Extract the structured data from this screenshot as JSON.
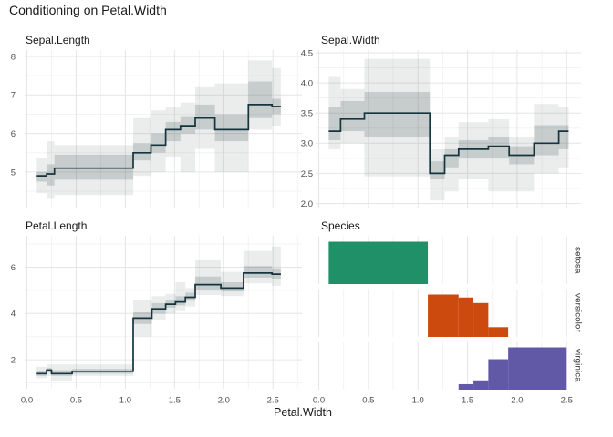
{
  "title": "Conditioning on Petal.Width",
  "x_axis": {
    "label": "Petal.Width",
    "ticks": [
      {
        "v": 0.0,
        "label": "0.0"
      },
      {
        "v": 0.5,
        "label": "0.5"
      },
      {
        "v": 1.0,
        "label": "1.0"
      },
      {
        "v": 1.5,
        "label": "1.5"
      },
      {
        "v": 2.0,
        "label": "2.0"
      },
      {
        "v": 2.5,
        "label": "2.5"
      }
    ],
    "minor_values": [
      0.25,
      0.75,
      1.25,
      1.75,
      2.25,
      2.75
    ],
    "range": [
      0.0,
      2.5
    ]
  },
  "colors": {
    "step_line": "#16343e",
    "band": "#4a5d58",
    "grid_major": "#e4e6e6",
    "grid_minor": "#f2f3f3",
    "title_text": "#191919",
    "tick_text": "#4d4d4d",
    "setosa": "#1f9067",
    "versicolor": "#cc4a0e",
    "virginica": "#6159a6"
  },
  "segment_format": "[x_start, x_end, median, outer_low, inner_low, inner_high, outer_high]",
  "chart_data": [
    {
      "type": "step-band",
      "title": "Sepal.Length",
      "position": "top-left",
      "y_ticks": [
        {
          "v": 5,
          "label": "5"
        },
        {
          "v": 6,
          "label": "6"
        },
        {
          "v": 7,
          "label": "7"
        },
        {
          "v": 8,
          "label": "8"
        }
      ],
      "segments": [
        [
          0.1,
          0.2,
          4.9,
          4.45,
          4.75,
          5.0,
          5.35
        ],
        [
          0.2,
          0.28,
          4.95,
          4.3,
          4.65,
          5.2,
          5.8
        ],
        [
          0.28,
          1.08,
          5.1,
          4.4,
          4.8,
          5.45,
          5.7
        ],
        [
          1.08,
          1.26,
          5.5,
          4.9,
          5.3,
          5.75,
          6.4
        ],
        [
          1.26,
          1.41,
          5.7,
          5.0,
          5.5,
          6.0,
          6.6
        ],
        [
          1.41,
          1.56,
          6.1,
          5.4,
          5.8,
          6.3,
          6.7
        ],
        [
          1.56,
          1.71,
          6.2,
          5.0,
          6.0,
          6.45,
          6.8
        ],
        [
          1.71,
          1.91,
          6.4,
          5.6,
          6.1,
          6.75,
          7.2
        ],
        [
          1.91,
          2.25,
          6.1,
          5.0,
          5.8,
          6.5,
          7.3
        ],
        [
          2.25,
          2.49,
          6.75,
          6.1,
          6.4,
          7.35,
          7.9
        ],
        [
          2.49,
          2.58,
          6.7,
          6.2,
          6.5,
          6.9,
          7.7
        ]
      ]
    },
    {
      "type": "step-band",
      "title": "Sepal.Width",
      "position": "top-right",
      "y_ticks": [
        {
          "v": 2.0,
          "label": "2.0"
        },
        {
          "v": 2.5,
          "label": "2.5"
        },
        {
          "v": 3.0,
          "label": "3.0"
        },
        {
          "v": 3.5,
          "label": "3.5"
        },
        {
          "v": 4.0,
          "label": "4.0"
        },
        {
          "v": 4.5,
          "label": "4.5"
        }
      ],
      "segments": [
        [
          0.1,
          0.22,
          3.2,
          2.9,
          3.05,
          3.6,
          4.1
        ],
        [
          0.22,
          0.46,
          3.4,
          3.0,
          3.2,
          3.7,
          3.9
        ],
        [
          0.46,
          1.12,
          3.5,
          2.45,
          3.1,
          3.85,
          4.4
        ],
        [
          1.12,
          1.27,
          2.5,
          2.05,
          2.4,
          2.7,
          2.9
        ],
        [
          1.27,
          1.41,
          2.8,
          2.2,
          2.6,
          2.9,
          3.1
        ],
        [
          1.41,
          1.71,
          2.9,
          2.4,
          2.75,
          3.05,
          3.35
        ],
        [
          1.71,
          1.92,
          2.95,
          2.2,
          2.75,
          3.1,
          3.4
        ],
        [
          1.92,
          2.17,
          2.8,
          2.2,
          2.65,
          2.95,
          3.1
        ],
        [
          2.17,
          2.42,
          3.0,
          2.5,
          2.8,
          3.3,
          3.65
        ],
        [
          2.42,
          2.52,
          3.2,
          2.6,
          2.9,
          3.3,
          3.6
        ]
      ]
    },
    {
      "type": "step-band",
      "title": "Petal.Length",
      "position": "bottom-left",
      "y_ticks": [
        {
          "v": 2,
          "label": "2"
        },
        {
          "v": 4,
          "label": "4"
        },
        {
          "v": 6,
          "label": "6"
        }
      ],
      "segments": [
        [
          0.1,
          0.2,
          1.4,
          1.2,
          1.3,
          1.5,
          1.7
        ],
        [
          0.2,
          0.25,
          1.55,
          1.3,
          1.45,
          1.65,
          1.8
        ],
        [
          0.25,
          0.46,
          1.4,
          1.1,
          1.3,
          1.55,
          1.8
        ],
        [
          0.46,
          1.08,
          1.5,
          1.3,
          1.4,
          1.6,
          1.8
        ],
        [
          1.08,
          1.27,
          3.8,
          3.0,
          3.55,
          4.05,
          4.6
        ],
        [
          1.27,
          1.41,
          4.2,
          3.7,
          4.0,
          4.45,
          4.75
        ],
        [
          1.41,
          1.51,
          4.4,
          4.0,
          4.25,
          4.6,
          4.85
        ],
        [
          1.51,
          1.61,
          4.5,
          4.1,
          4.35,
          4.75,
          5.35
        ],
        [
          1.61,
          1.71,
          4.7,
          4.3,
          4.55,
          4.9,
          5.1
        ],
        [
          1.71,
          1.97,
          5.25,
          4.8,
          5.0,
          5.6,
          6.3
        ],
        [
          1.97,
          2.2,
          5.1,
          4.75,
          4.95,
          5.35,
          5.8
        ],
        [
          2.2,
          2.49,
          5.75,
          5.3,
          5.55,
          6.05,
          6.7
        ],
        [
          2.49,
          2.58,
          5.7,
          5.2,
          5.5,
          5.95,
          6.9
        ]
      ]
    },
    {
      "type": "hist-facets",
      "title": "Species",
      "position": "bottom-right",
      "bar_format": "[x_start, x_end, relative_height]",
      "facets": [
        {
          "label": "setosa",
          "color": "#1f9067",
          "bars": [
            [
              0.1,
              1.1,
              1.0
            ]
          ]
        },
        {
          "label": "versicolor",
          "color": "#cc4a0e",
          "bars": [
            [
              1.1,
              1.41,
              1.0
            ],
            [
              1.41,
              1.56,
              0.93
            ],
            [
              1.56,
              1.71,
              0.8
            ],
            [
              1.71,
              1.91,
              0.23
            ]
          ]
        },
        {
          "label": "virginica",
          "color": "#6159a6",
          "bars": [
            [
              1.41,
              1.56,
              0.13
            ],
            [
              1.56,
              1.71,
              0.22
            ],
            [
              1.71,
              1.91,
              0.72
            ],
            [
              1.91,
              2.5,
              1.0
            ]
          ]
        }
      ]
    }
  ]
}
